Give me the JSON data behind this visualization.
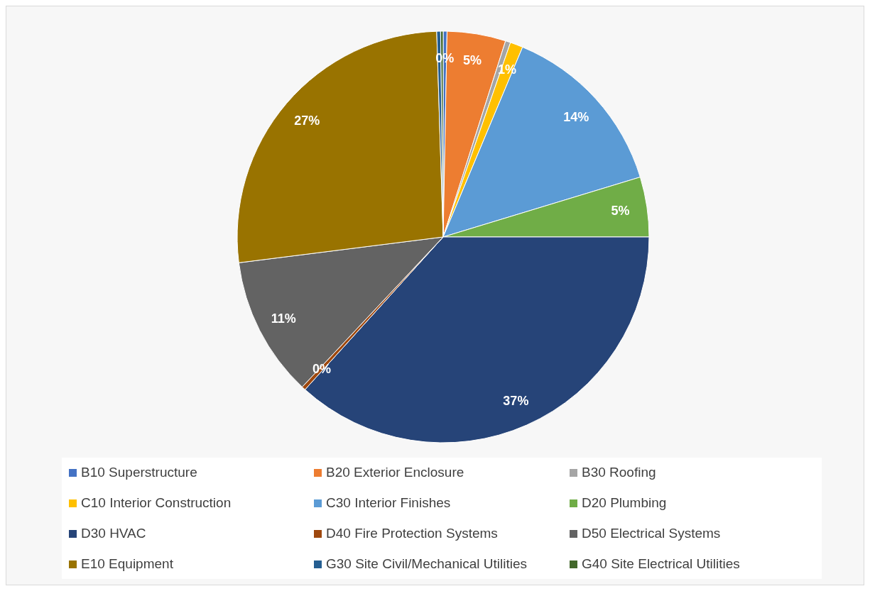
{
  "chart_data": {
    "type": "pie",
    "categories": [
      "B10 Superstructure",
      "B20 Exterior Enclosure",
      "B30 Roofing",
      "C10 Interior Construction",
      "C30 Interior Finishes",
      "D20 Plumbing",
      "D30 HVAC",
      "D40 Fire Protection Systems",
      "D50 Electrical Systems",
      "E10 Equipment",
      "G30 Site Civil/Mechanical Utilities",
      "G40 Site Electrical Utilities"
    ],
    "values": [
      0.3,
      4.6,
      0.4,
      1.0,
      14.0,
      4.7,
      36.7,
      0.3,
      11.0,
      26.5,
      0.3,
      0.2
    ],
    "value_labels": [
      "0%",
      "5%",
      null,
      "1%",
      "14%",
      "5%",
      "37%",
      "0%",
      "11%",
      "27%",
      null,
      null
    ],
    "colors": [
      "#4472c4",
      "#ed7d31",
      "#a5a5a5",
      "#ffc000",
      "#5b9bd5",
      "#70ad47",
      "#264478",
      "#9e480e",
      "#636363",
      "#997300",
      "#255e91",
      "#43682b"
    ],
    "legend": "bottom"
  }
}
